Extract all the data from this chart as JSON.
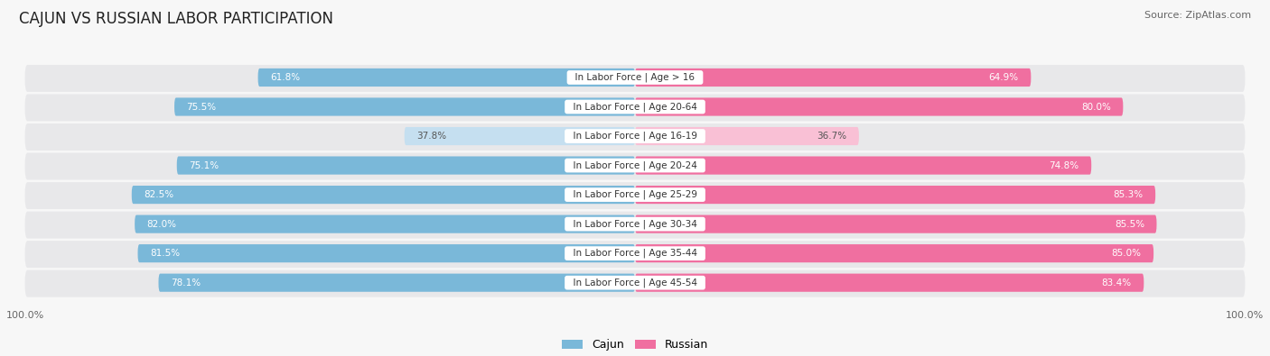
{
  "title": "CAJUN VS RUSSIAN LABOR PARTICIPATION",
  "source": "Source: ZipAtlas.com",
  "categories": [
    "In Labor Force | Age > 16",
    "In Labor Force | Age 20-64",
    "In Labor Force | Age 16-19",
    "In Labor Force | Age 20-24",
    "In Labor Force | Age 25-29",
    "In Labor Force | Age 30-34",
    "In Labor Force | Age 35-44",
    "In Labor Force | Age 45-54"
  ],
  "cajun_values": [
    61.8,
    75.5,
    37.8,
    75.1,
    82.5,
    82.0,
    81.5,
    78.1
  ],
  "russian_values": [
    64.9,
    80.0,
    36.7,
    74.8,
    85.3,
    85.5,
    85.0,
    83.4
  ],
  "cajun_color": "#7ab8d9",
  "cajun_light_color": "#c5dff0",
  "russian_color": "#f06fa0",
  "russian_light_color": "#f9c0d5",
  "bg_color": "#f7f7f7",
  "bar_bg_color": "#e8e8ea",
  "title_fontsize": 12,
  "source_fontsize": 8,
  "label_fontsize": 7.5,
  "value_fontsize": 7.5,
  "legend_fontsize": 9,
  "axis_label_fontsize": 8,
  "low_threshold": 50
}
